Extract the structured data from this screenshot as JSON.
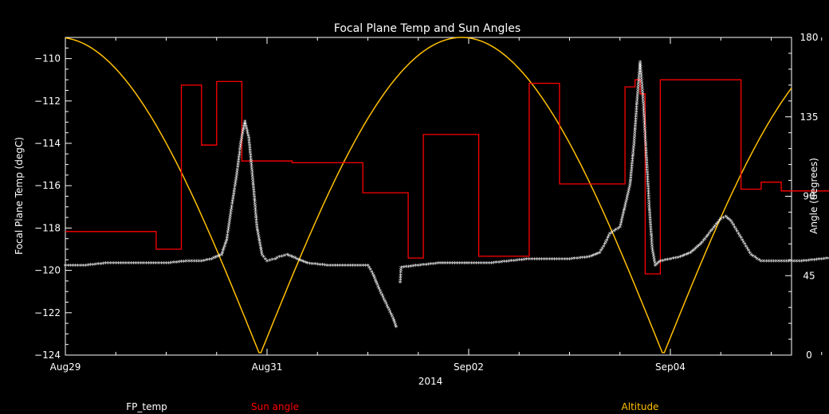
{
  "chart_data": {
    "type": "line",
    "title": "Focal Plane Temp and Sun Angles",
    "xlabel": "2014",
    "ylabel": "Focal Plane Temp (degC)",
    "y2label": "Angle (degrees)",
    "x_ticks": [
      "Aug29",
      "Aug31",
      "Sep02",
      "Sep04"
    ],
    "xlim_days": [
      0,
      8
    ],
    "ylim": [
      -124,
      -109
    ],
    "yticks": [
      -110,
      -112,
      -114,
      -116,
      -118,
      -120,
      -122,
      -124
    ],
    "y2lim": [
      0,
      180
    ],
    "y2ticks": [
      0,
      45,
      90,
      135,
      180
    ],
    "colors": {
      "fp_temp": "#ffffff",
      "sun_angle": "#ff0000",
      "altitude": "#ffc000"
    },
    "series": [
      {
        "name": "FP_temp",
        "axis": "left",
        "style": "markers",
        "points": [
          [
            0.0,
            -119.8
          ],
          [
            0.2,
            -119.8
          ],
          [
            0.4,
            -119.7
          ],
          [
            0.6,
            -119.7
          ],
          [
            0.8,
            -119.7
          ],
          [
            1.0,
            -119.7
          ],
          [
            1.2,
            -119.6
          ],
          [
            1.35,
            -119.6
          ],
          [
            1.45,
            -119.5
          ],
          [
            1.55,
            -119.3
          ],
          [
            1.6,
            -118.6
          ],
          [
            1.65,
            -117.0
          ],
          [
            1.7,
            -115.5
          ],
          [
            1.74,
            -114.0
          ],
          [
            1.78,
            -113.0
          ],
          [
            1.82,
            -113.8
          ],
          [
            1.86,
            -115.8
          ],
          [
            1.9,
            -118.0
          ],
          [
            1.95,
            -119.3
          ],
          [
            2.0,
            -119.6
          ],
          [
            2.08,
            -119.5
          ],
          [
            2.12,
            -119.4
          ],
          [
            2.2,
            -119.3
          ],
          [
            2.3,
            -119.5
          ],
          [
            2.4,
            -119.7
          ],
          [
            2.6,
            -119.8
          ],
          [
            2.8,
            -119.8
          ],
          [
            3.0,
            -119.8
          ],
          [
            3.05,
            -120.2
          ],
          [
            3.1,
            -120.8
          ],
          [
            3.15,
            -121.3
          ],
          [
            3.2,
            -121.8
          ],
          [
            3.25,
            -122.3
          ],
          [
            3.28,
            -122.7
          ],
          [
            3.32,
            -120.6
          ],
          [
            3.33,
            -119.9
          ],
          [
            3.5,
            -119.8
          ],
          [
            3.7,
            -119.7
          ],
          [
            4.0,
            -119.7
          ],
          [
            4.2,
            -119.7
          ],
          [
            4.4,
            -119.6
          ],
          [
            4.6,
            -119.5
          ],
          [
            4.8,
            -119.5
          ],
          [
            5.0,
            -119.5
          ],
          [
            5.2,
            -119.4
          ],
          [
            5.3,
            -119.2
          ],
          [
            5.35,
            -118.8
          ],
          [
            5.4,
            -118.3
          ],
          [
            5.5,
            -118.0
          ],
          [
            5.55,
            -117.0
          ],
          [
            5.6,
            -116.0
          ],
          [
            5.64,
            -114.0
          ],
          [
            5.67,
            -112.0
          ],
          [
            5.7,
            -110.2
          ],
          [
            5.73,
            -112.0
          ],
          [
            5.76,
            -114.5
          ],
          [
            5.79,
            -117.0
          ],
          [
            5.82,
            -119.0
          ],
          [
            5.85,
            -119.8
          ],
          [
            5.9,
            -119.6
          ],
          [
            6.0,
            -119.5
          ],
          [
            6.1,
            -119.4
          ],
          [
            6.2,
            -119.2
          ],
          [
            6.3,
            -118.8
          ],
          [
            6.4,
            -118.2
          ],
          [
            6.5,
            -117.6
          ],
          [
            6.55,
            -117.5
          ],
          [
            6.6,
            -117.7
          ],
          [
            6.7,
            -118.5
          ],
          [
            6.8,
            -119.3
          ],
          [
            6.9,
            -119.6
          ],
          [
            7.1,
            -119.6
          ],
          [
            7.3,
            -119.6
          ],
          [
            7.5,
            -119.5
          ],
          [
            7.7,
            -119.4
          ],
          [
            7.85,
            -119.2
          ],
          [
            7.95,
            -118.8
          ],
          [
            8.0,
            -118.5
          ],
          [
            8.05,
            -118.9
          ],
          [
            8.1,
            -119.6
          ],
          [
            8.2,
            -119.7
          ],
          [
            8.35,
            -119.6
          ],
          [
            8.5,
            -119.4
          ],
          [
            8.55,
            -118.6
          ],
          [
            8.6,
            -117.8
          ],
          [
            8.63,
            -117.5
          ],
          [
            8.67,
            -118.0
          ],
          [
            8.7,
            -118.3
          ],
          [
            8.75,
            -117.5
          ],
          [
            8.8,
            -116.2
          ],
          [
            8.83,
            -115.6
          ],
          [
            8.86,
            -115.9
          ],
          [
            8.9,
            -117.5
          ],
          [
            8.95,
            -118.8
          ],
          [
            9.0,
            -119.6
          ],
          [
            9.1,
            -119.7
          ],
          [
            9.2,
            -119.6
          ],
          [
            9.3,
            -119.5
          ]
        ]
      },
      {
        "name": "Sun angle",
        "axis": "right",
        "style": "step",
        "points": [
          [
            0.0,
            70
          ],
          [
            0.9,
            70
          ],
          [
            0.9,
            60
          ],
          [
            1.15,
            60
          ],
          [
            1.15,
            153
          ],
          [
            1.35,
            153
          ],
          [
            1.35,
            119
          ],
          [
            1.5,
            119
          ],
          [
            1.5,
            155
          ],
          [
            1.75,
            155
          ],
          [
            1.75,
            110
          ],
          [
            2.25,
            110
          ],
          [
            2.25,
            109
          ],
          [
            2.95,
            109
          ],
          [
            2.95,
            92
          ],
          [
            3.4,
            92
          ],
          [
            3.4,
            55
          ],
          [
            3.55,
            55
          ],
          [
            3.55,
            125
          ],
          [
            4.1,
            125
          ],
          [
            4.1,
            56
          ],
          [
            4.6,
            56
          ],
          [
            4.6,
            154
          ],
          [
            4.9,
            154
          ],
          [
            4.9,
            97
          ],
          [
            5.55,
            97
          ],
          [
            5.55,
            152
          ],
          [
            5.65,
            152
          ],
          [
            5.65,
            156
          ],
          [
            5.7,
            156
          ],
          [
            5.7,
            148
          ],
          [
            5.75,
            148
          ],
          [
            5.75,
            46
          ],
          [
            5.9,
            46
          ],
          [
            5.9,
            156
          ],
          [
            6.7,
            156
          ],
          [
            6.7,
            94
          ],
          [
            6.9,
            94
          ],
          [
            6.9,
            98
          ],
          [
            7.1,
            98
          ],
          [
            7.1,
            93
          ],
          [
            7.65,
            93
          ],
          [
            7.65,
            129
          ],
          [
            8.3,
            129
          ],
          [
            8.3,
            45
          ],
          [
            8.6,
            45
          ],
          [
            8.6,
            125
          ],
          [
            8.9,
            125
          ],
          [
            8.9,
            155
          ],
          [
            9.15,
            155
          ],
          [
            9.15,
            53
          ],
          [
            9.55,
            53
          ],
          [
            9.55,
            155
          ],
          [
            9.7,
            155
          ],
          [
            9.7,
            156
          ],
          [
            9.85,
            156
          ]
        ]
      },
      {
        "name": "Altitude",
        "axis": "right",
        "style": "line",
        "cycle": {
          "start": 0.0,
          "peak": 180,
          "zeros_days": [
            1.93,
            5.93,
            9.93
          ],
          "period_days": 4.0
        },
        "points": [
          [
            0.0,
            168
          ],
          [
            0.5,
            120
          ],
          [
            1.0,
            78
          ],
          [
            1.5,
            38
          ],
          [
            1.93,
            0
          ],
          [
            2.4,
            55
          ],
          [
            2.9,
            110
          ],
          [
            3.4,
            155
          ],
          [
            3.93,
            180
          ],
          [
            4.45,
            160
          ],
          [
            4.95,
            115
          ],
          [
            5.45,
            58
          ],
          [
            5.93,
            0
          ],
          [
            6.4,
            55
          ],
          [
            6.9,
            110
          ],
          [
            7.4,
            155
          ],
          [
            7.93,
            180
          ],
          [
            8.45,
            160
          ],
          [
            8.95,
            115
          ],
          [
            9.45,
            58
          ],
          [
            9.93,
            0
          ],
          [
            10.2,
            48
          ]
        ]
      }
    ],
    "legend": [
      "FP_temp",
      "Sun angle",
      "Altitude"
    ],
    "legend_placement": "bottom"
  }
}
